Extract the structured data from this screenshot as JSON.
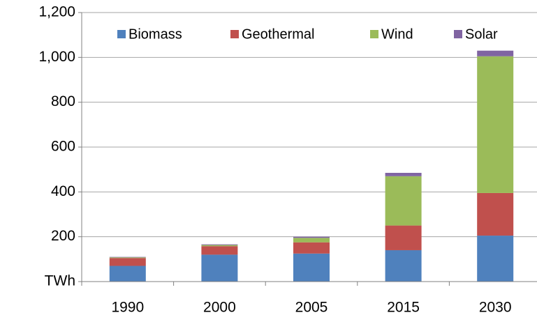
{
  "chart_data": {
    "type": "bar",
    "stacked": true,
    "categories": [
      "1990",
      "2000",
      "2005",
      "2015",
      "2030"
    ],
    "series": [
      {
        "name": "Biomass",
        "color": "#4f81bd",
        "values": [
          70,
          120,
          125,
          140,
          205
        ]
      },
      {
        "name": "Geothermal",
        "color": "#c0504d",
        "values": [
          35,
          38,
          50,
          110,
          190
        ]
      },
      {
        "name": "Wind",
        "color": "#9bbb59",
        "values": [
          3,
          5,
          20,
          220,
          610
        ]
      },
      {
        "name": "Solar",
        "color": "#8064a2",
        "values": [
          2,
          3,
          5,
          15,
          25
        ]
      }
    ],
    "ylim": [
      0,
      1200
    ],
    "yticks": [
      {
        "value": 0,
        "label": "TWh"
      },
      200,
      400,
      600,
      800,
      {
        "value": 1000,
        "label": "1,000"
      },
      {
        "value": 1200,
        "label": "1,200"
      }
    ],
    "grid": true,
    "legend": "top"
  }
}
